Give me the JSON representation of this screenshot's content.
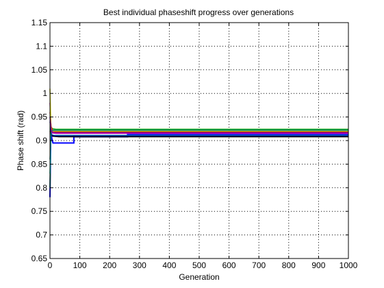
{
  "chart_data": {
    "type": "line",
    "title": "Best individual phaseshift progress over generations",
    "xlabel": "Generation",
    "ylabel": "Phase shift (rad)",
    "xlim": [
      0,
      1000
    ],
    "ylim": [
      0.65,
      1.15
    ],
    "grid": true,
    "grid_style": "dotted",
    "xticks": [
      "0",
      "100",
      "200",
      "300",
      "400",
      "500",
      "600",
      "700",
      "800",
      "900",
      "1000"
    ],
    "yticks": [
      "0.65",
      "0.7",
      "0.75",
      "0.8",
      "0.85",
      "0.9",
      "0.95",
      "1",
      "1.05",
      "1.1",
      "1.15"
    ],
    "series": [
      {
        "color": "#0000ff",
        "x": [
          0,
          3,
          6,
          10,
          20,
          80,
          80,
          200,
          260,
          260,
          1000
        ],
        "y": [
          0.78,
          0.93,
          0.905,
          0.895,
          0.895,
          0.895,
          0.908,
          0.908,
          0.908,
          0.913,
          0.913
        ]
      },
      {
        "color": "#00a000",
        "x": [
          0,
          3,
          8,
          20,
          1000
        ],
        "y": [
          0.8,
          0.93,
          0.925,
          0.924,
          0.924
        ]
      },
      {
        "color": "#ff0000",
        "x": [
          0,
          4,
          10,
          30,
          1000
        ],
        "y": [
          0.96,
          0.93,
          0.92,
          0.918,
          0.918
        ]
      },
      {
        "color": "#00c0c0",
        "x": [
          0,
          3,
          6,
          15,
          1000
        ],
        "y": [
          0.83,
          0.915,
          0.912,
          0.911,
          0.911
        ]
      },
      {
        "color": "#c000c0",
        "x": [
          0,
          3,
          8,
          20,
          1000
        ],
        "y": [
          0.98,
          0.93,
          0.916,
          0.915,
          0.915
        ]
      },
      {
        "color": "#c0c000",
        "x": [
          0,
          3,
          6,
          20,
          1000
        ],
        "y": [
          1.01,
          0.935,
          0.921,
          0.92,
          0.92
        ]
      },
      {
        "color": "#000000",
        "x": [
          0,
          4,
          10,
          30,
          1000
        ],
        "y": [
          0.92,
          0.912,
          0.909,
          0.908,
          0.908
        ]
      },
      {
        "color": "#000080",
        "x": [
          0,
          5,
          15,
          1000
        ],
        "y": [
          0.94,
          0.912,
          0.91,
          0.91
        ]
      },
      {
        "color": "#008080",
        "x": [
          0,
          4,
          12,
          1000
        ],
        "y": [
          0.86,
          0.92,
          0.922,
          0.922
        ]
      },
      {
        "color": "#800080",
        "x": [
          0,
          5,
          14,
          1000
        ],
        "y": [
          0.95,
          0.918,
          0.917,
          0.917
        ]
      }
    ]
  }
}
